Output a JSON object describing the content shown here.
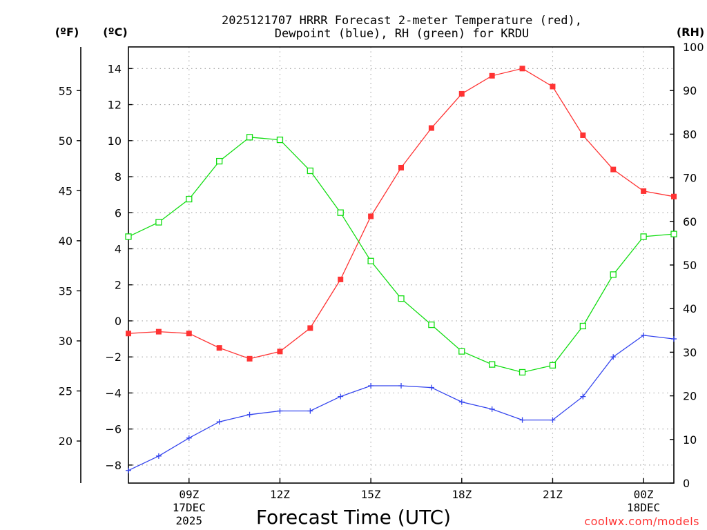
{
  "title_line1": "2025121707 HRRR Forecast 2-meter Temperature (red),",
  "title_line2": "Dewpoint (blue), RH (green) for KRDU",
  "unit_f": "(ºF)",
  "unit_c": "(ºC)",
  "unit_rh": "(RH)",
  "xlabel": "Forecast Time (UTC)",
  "watermark": "coolwx.com/models",
  "colors": {
    "temperature": "#ff3333",
    "dewpoint": "#3344ee",
    "rh": "#11dd11",
    "watermark": "#ff3333",
    "grid": "#aaaaaa"
  },
  "chart_data": {
    "type": "line",
    "title": "2025121707 HRRR Forecast 2-meter Temperature (red), Dewpoint (blue), RH (green) for KRDU",
    "xlabel": "Forecast Time (UTC)",
    "x_hours": [
      7,
      8,
      9,
      10,
      11,
      12,
      13,
      14,
      15,
      16,
      17,
      18,
      19,
      20,
      21,
      22,
      23,
      24,
      25
    ],
    "xlim": [
      7,
      25
    ],
    "x_ticks": [
      {
        "hour": 9,
        "label": "09Z",
        "sub1": "17DEC",
        "sub2": "2025"
      },
      {
        "hour": 12,
        "label": "12Z",
        "sub1": "",
        "sub2": ""
      },
      {
        "hour": 15,
        "label": "15Z",
        "sub1": "",
        "sub2": ""
      },
      {
        "hour": 18,
        "label": "18Z",
        "sub1": "",
        "sub2": ""
      },
      {
        "hour": 21,
        "label": "21Z",
        "sub1": "",
        "sub2": ""
      },
      {
        "hour": 24,
        "label": "00Z",
        "sub1": "18DEC",
        "sub2": ""
      }
    ],
    "ylim_c": [
      -9,
      15.2
    ],
    "c_ticks": [
      "14",
      "12",
      "10",
      "8",
      "6",
      "4",
      "2",
      "0",
      "−2",
      "−4",
      "−6",
      "−8"
    ],
    "c_tick_values": [
      14,
      12,
      10,
      8,
      6,
      4,
      2,
      0,
      -2,
      -4,
      -6,
      -8
    ],
    "f_ticks": [
      "55",
      "50",
      "45",
      "40",
      "35",
      "30",
      "25",
      "20"
    ],
    "f_tick_values": [
      55,
      50,
      45,
      40,
      35,
      30,
      25,
      20
    ],
    "rh_ticks": [
      "100",
      "90",
      "80",
      "70",
      "60",
      "50",
      "40",
      "30",
      "20",
      "10",
      "0"
    ],
    "rh_tick_values": [
      100,
      90,
      80,
      70,
      60,
      50,
      40,
      30,
      20,
      10,
      0
    ],
    "ylim_rh": [
      0,
      100
    ],
    "series": [
      {
        "name": "Temperature (°C)",
        "color": "red",
        "marker": "filled-square",
        "values": [
          -0.7,
          -0.6,
          -0.7,
          -1.5,
          -2.1,
          -1.7,
          -0.4,
          2.3,
          5.8,
          8.5,
          10.7,
          12.6,
          13.6,
          14.0,
          13.0,
          10.3,
          8.4,
          7.2,
          6.9
        ]
      },
      {
        "name": "Dewpoint (°C)",
        "color": "blue",
        "marker": "plus",
        "values": [
          -8.3,
          -7.5,
          -6.5,
          -5.6,
          -5.2,
          -5.0,
          -5.0,
          -4.2,
          -3.6,
          -3.6,
          -3.7,
          -4.5,
          -4.9,
          -5.5,
          -5.5,
          -4.2,
          -2.0,
          -0.8,
          -1.0
        ]
      },
      {
        "name": "RH (%)",
        "color": "green",
        "marker": "open-square",
        "values": [
          56.5,
          59.8,
          65.1,
          73.8,
          79.3,
          78.7,
          71.6,
          62.0,
          50.9,
          42.3,
          36.3,
          30.2,
          27.2,
          25.4,
          27.0,
          36.0,
          47.8,
          56.5,
          57.1
        ]
      }
    ]
  }
}
